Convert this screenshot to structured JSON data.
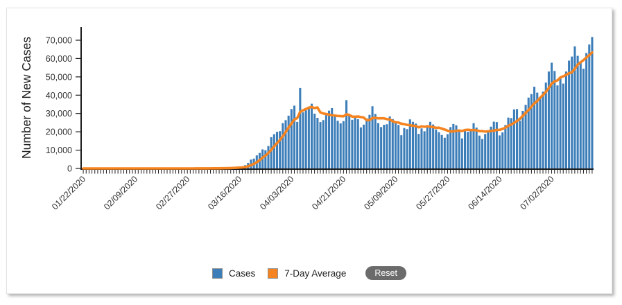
{
  "y_axis": {
    "title": "Number of New Cases",
    "tick_labels": [
      "0",
      "10,000",
      "20,000",
      "30,000",
      "40,000",
      "50,000",
      "60,000",
      "70,000"
    ]
  },
  "x_axis": {
    "tick_labels": [
      "01/22/2020",
      "02/09/2020",
      "02/27/2020",
      "03/16/2020",
      "04/03/2020",
      "04/21/2020",
      "05/09/2020",
      "05/27/2020",
      "06/14/2020",
      "07/02/2020"
    ],
    "label_interval_days": 18
  },
  "legend": {
    "items": [
      {
        "label": "Cases",
        "color": "#3d7eb9"
      },
      {
        "label": "7-Day Average",
        "color": "#f5831f"
      }
    ],
    "reset_button": "Reset"
  },
  "chart_data": {
    "type": "bar+line",
    "title": "",
    "xlabel": "",
    "ylabel": "Number of New Cases",
    "start_date": "01/22/2020",
    "y_ticks": [
      0,
      10000,
      20000,
      30000,
      40000,
      50000,
      60000,
      70000
    ],
    "ylim": [
      0,
      77000
    ],
    "grid": false,
    "legend_position": "bottom-center",
    "x_tick_labels": [
      "01/22/2020",
      "02/09/2020",
      "02/27/2020",
      "03/16/2020",
      "04/03/2020",
      "04/21/2020",
      "05/09/2020",
      "05/27/2020",
      "06/14/2020",
      "07/02/2020"
    ],
    "x_tick_interval_days": 18,
    "series": [
      {
        "name": "Cases",
        "type": "bar",
        "color": "#3d7eb9",
        "values": [
          1,
          0,
          1,
          0,
          3,
          0,
          0,
          0,
          2,
          1,
          1,
          0,
          0,
          0,
          3,
          0,
          0,
          0,
          1,
          0,
          2,
          1,
          1,
          1,
          0,
          0,
          0,
          2,
          0,
          0,
          1,
          0,
          2,
          0,
          6,
          1,
          1,
          6,
          8,
          24,
          20,
          31,
          68,
          45,
          119,
          114,
          64,
          147,
          225,
          290,
          278,
          414,
          530,
          723,
          823,
          887,
          1766,
          2988,
          4835,
          5374,
          7123,
          8459,
          10410,
          9939,
          12226,
          17050,
          18695,
          19979,
          20330,
          24742,
          26351,
          28819,
          32425,
          34272,
          25398,
          43938,
          30613,
          31709,
          33752,
          35341,
          29917,
          27620,
          25306,
          26385,
          29595,
          31533,
          32922,
          28711,
          26012,
          24601,
          25841,
          37289,
          29064,
          26543,
          28328,
          26917,
          22412,
          23901,
          27326,
          29256,
          33955,
          29744,
          24782,
          22593,
          23841,
          24128,
          28391,
          26957,
          25770,
          23792,
          18117,
          22048,
          21467,
          26782,
          25434,
          24487,
          18873,
          21841,
          20289,
          23285,
          25434,
          23970,
          21236,
          19790,
          18263,
          16751,
          18722,
          22577,
          24266,
          23553,
          20724,
          16391,
          20461,
          19999,
          21140,
          24720,
          22302,
          17919,
          16079,
          18822,
          20801,
          22800,
          25540,
          25300,
          18022,
          19680,
          23707,
          27762,
          27511,
          32218,
          32411,
          26079,
          31402,
          34720,
          38672,
          40588,
          44602,
          41390,
          38673,
          41940,
          46842,
          52898,
          57718,
          53200,
          45340,
          49471,
          46329,
          52901,
          58858,
          61067,
          66627,
          61472,
          58349,
          54450,
          63004,
          67632,
          71750
        ]
      },
      {
        "name": "7-Day Average",
        "type": "line",
        "color": "#f5831f",
        "derived_from": "Cases",
        "window": 7
      }
    ]
  }
}
